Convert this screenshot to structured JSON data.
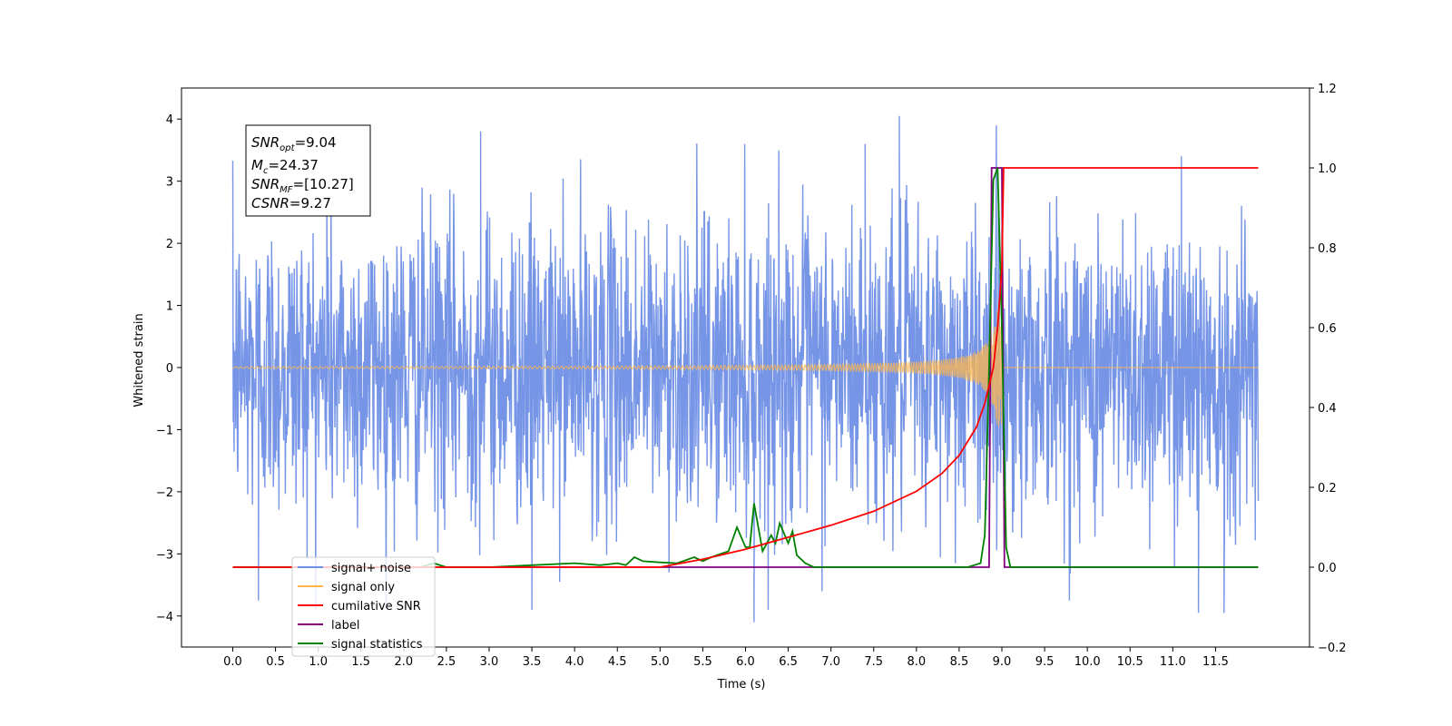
{
  "chart_data": {
    "type": "line",
    "xlabel": "Time (s)",
    "ylabel": "Whitened strain",
    "ylabel_right": "",
    "xlim": [
      -0.6,
      12.6
    ],
    "ylim": [
      -4.5,
      4.5
    ],
    "ylim_right": [
      -0.2,
      1.2
    ],
    "x_ticks": [
      "0.0",
      "0.5",
      "1.0",
      "1.5",
      "2.0",
      "2.5",
      "3.0",
      "3.5",
      "4.0",
      "4.5",
      "5.0",
      "5.5",
      "6.0",
      "6.5",
      "7.0",
      "7.5",
      "8.0",
      "8.5",
      "9.0",
      "9.5",
      "10.0",
      "10.5",
      "11.0",
      "11.5"
    ],
    "y_ticks": [
      "4",
      "3",
      "2",
      "1",
      "0",
      "−1",
      "−2",
      "−3",
      "−4"
    ],
    "y_ticks_right": [
      "1.2",
      "1.0",
      "0.8",
      "0.6",
      "0.4",
      "0.2",
      "0.0",
      "−0.2"
    ],
    "grid": false,
    "legend_position": "lower-left",
    "colors": {
      "signal_noise": "#6f8fe6",
      "signal_only": "#ffb74d",
      "cumulative_snr": "#ff0000",
      "label": "#800080",
      "signal_statistics": "#008000"
    },
    "annotation": {
      "snr_opt": {
        "sym": "SNR",
        "sub": "opt",
        "val": "=9.04"
      },
      "mc": {
        "sym": "M",
        "sub": "c",
        "val": "=24.37"
      },
      "snr_mf": {
        "sym": "SNR",
        "sub": "MF",
        "val": "=[10.27]"
      },
      "csnr": {
        "sym": "CSNR",
        "sub": "",
        "val": "=9.27"
      }
    },
    "series": [
      {
        "name": "signal+ noise",
        "axis": "left",
        "x_range": [
          0.0,
          12.0
        ],
        "amplitude_typical": 1.2,
        "peak_high": [
          [
            2.9,
            3.8
          ],
          [
            7.8,
            4.05
          ],
          [
            7.4,
            3.6
          ],
          [
            1.1,
            3.8
          ],
          [
            11.1,
            3.4
          ]
        ],
        "peak_low": [
          [
            0.3,
            -3.75
          ],
          [
            6.1,
            -4.1
          ],
          [
            3.5,
            -3.9
          ],
          [
            11.3,
            -3.95
          ],
          [
            11.6,
            -3.95
          ]
        ]
      },
      {
        "name": "signal only",
        "axis": "left",
        "x_range": [
          0.0,
          12.0
        ],
        "chirp_end": 9.0,
        "max_amplitude": 1.0
      },
      {
        "name": "cumilative SNR",
        "axis": "right",
        "x": [
          0.0,
          5.0,
          5.5,
          6.0,
          6.5,
          7.0,
          7.5,
          8.0,
          8.3,
          8.5,
          8.7,
          8.8,
          8.9,
          8.95,
          9.0,
          9.02,
          12.0
        ],
        "y": [
          0.0,
          0.0,
          0.02,
          0.045,
          0.075,
          0.105,
          0.14,
          0.19,
          0.235,
          0.28,
          0.35,
          0.41,
          0.5,
          0.6,
          0.75,
          1.0,
          1.0
        ]
      },
      {
        "name": "label",
        "axis": "right",
        "x": [
          0.0,
          8.85,
          8.88,
          9.0,
          9.03,
          12.0
        ],
        "y": [
          0.0,
          0.0,
          1.0,
          1.0,
          0.0,
          0.0
        ]
      },
      {
        "name": "signal statistics",
        "axis": "right",
        "x": [
          0.0,
          2.2,
          2.35,
          2.5,
          3.0,
          3.5,
          4.0,
          4.3,
          4.5,
          4.6,
          4.7,
          4.8,
          5.0,
          5.2,
          5.4,
          5.5,
          5.6,
          5.8,
          5.9,
          6.0,
          6.05,
          6.1,
          6.2,
          6.3,
          6.35,
          6.4,
          6.5,
          6.55,
          6.6,
          6.7,
          6.8,
          7.0,
          8.6,
          8.75,
          8.8,
          8.85,
          8.9,
          8.95,
          9.0,
          9.05,
          9.1,
          12.0
        ],
        "y": [
          0.0,
          0.0,
          0.01,
          0.0,
          0.0,
          0.005,
          0.01,
          0.005,
          0.01,
          0.005,
          0.025,
          0.015,
          0.012,
          0.01,
          0.025,
          0.015,
          0.025,
          0.04,
          0.1,
          0.05,
          0.05,
          0.16,
          0.04,
          0.08,
          0.06,
          0.11,
          0.06,
          0.09,
          0.03,
          0.01,
          0.0,
          0.0,
          0.0,
          0.01,
          0.08,
          0.5,
          0.97,
          1.0,
          0.6,
          0.05,
          0.0,
          0.0
        ]
      }
    ]
  }
}
